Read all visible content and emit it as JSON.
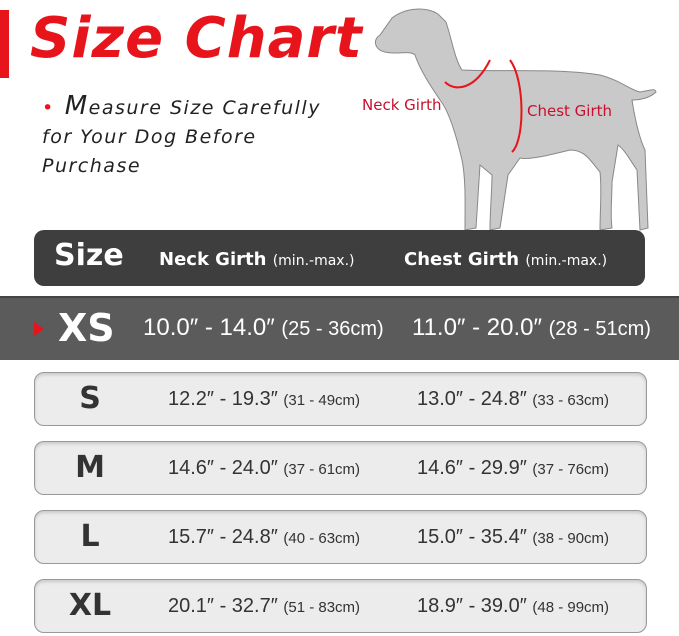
{
  "title": "Size Chart",
  "note": {
    "first_letter": "M",
    "rest": "easure Size Carefully for Your Dog Before Purchase"
  },
  "labels": {
    "neck": "Neck Girth",
    "chest": "Chest Girth"
  },
  "colors": {
    "accent": "#e8141b",
    "header": "#3e3e3e",
    "highlight_row": "#5b5b5b",
    "row": "#ececec"
  },
  "table": {
    "headers": {
      "size": "Size",
      "neck": "Neck Girth",
      "neck_unit": "(min.-max.)",
      "chest": "Chest Girth",
      "chest_unit": "(min.-max.)"
    },
    "rows": [
      {
        "size": "XS",
        "neck_in": "10.0″ - 14.0″",
        "neck_cm": "(25 - 36cm)",
        "chest_in": "11.0″ - 20.0″",
        "chest_cm": "(28 - 51cm)",
        "highlighted": true
      },
      {
        "size": "S",
        "neck_in": "12.2″ - 19.3″",
        "neck_cm": "(31 - 49cm)",
        "chest_in": "13.0″ - 24.8″",
        "chest_cm": "(33 - 63cm)"
      },
      {
        "size": "M",
        "neck_in": "14.6″ - 24.0″",
        "neck_cm": "(37 - 61cm)",
        "chest_in": "14.6″ - 29.9″",
        "chest_cm": "(37 - 76cm)"
      },
      {
        "size": "L",
        "neck_in": "15.7″ - 24.8″",
        "neck_cm": "(40 - 63cm)",
        "chest_in": "15.0″ - 35.4″",
        "chest_cm": "(38 - 90cm)"
      },
      {
        "size": "XL",
        "neck_in": "20.1″ - 32.7″",
        "neck_cm": "(51 - 83cm)",
        "chest_in": "18.9″ - 39.0″",
        "chest_cm": "(48 - 99cm)"
      }
    ]
  }
}
